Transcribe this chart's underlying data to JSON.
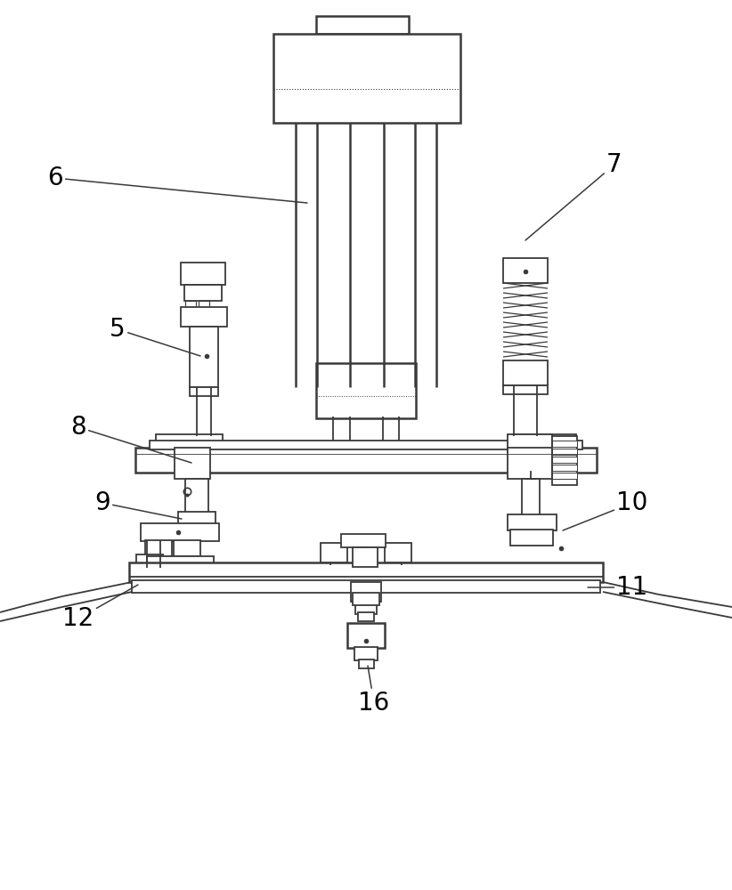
{
  "bg_color": "#ffffff",
  "line_color": "#3a3a3a",
  "line_width": 1.3,
  "fig_width": 8.22,
  "fig_height": 10.0,
  "label_fontsize": 20
}
